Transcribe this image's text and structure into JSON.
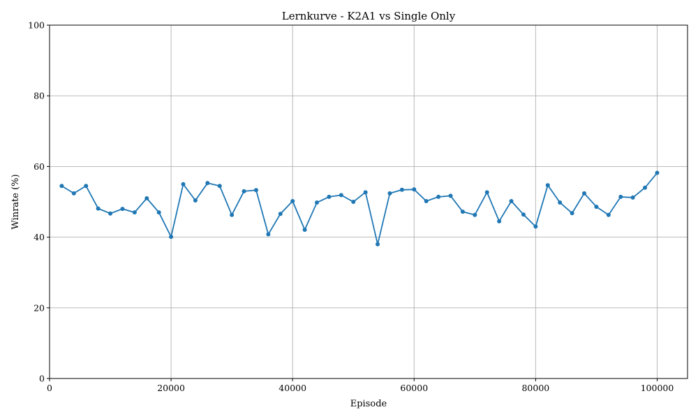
{
  "chart_data": {
    "type": "line",
    "title": "Lernkurve - K2A1 vs Single Only",
    "xlabel": "Episode",
    "ylabel": "Winrate (%)",
    "xlim": [
      0,
      105000
    ],
    "ylim": [
      0,
      100
    ],
    "xticks": [
      0,
      20000,
      40000,
      60000,
      80000,
      100000
    ],
    "yticks": [
      0,
      20,
      40,
      60,
      80,
      100
    ],
    "grid": true,
    "color": "#1f77b4",
    "series": [
      {
        "x": [
          2000,
          4000,
          6000,
          8000,
          10000,
          12000,
          14000,
          16000,
          18000,
          20000,
          22000,
          24000,
          26000,
          28000,
          30000,
          32000,
          34000,
          36000,
          38000,
          40000,
          42000,
          44000,
          46000,
          48000,
          50000,
          52000,
          54000,
          56000,
          58000,
          60000,
          62000,
          64000,
          66000,
          68000,
          70000,
          72000,
          74000,
          76000,
          78000,
          80000,
          82000,
          84000,
          86000,
          88000,
          90000,
          92000,
          94000,
          96000,
          98000,
          100000
        ],
        "y": [
          54.5,
          52.4,
          54.5,
          48.1,
          46.7,
          48.0,
          47.0,
          51.0,
          47.0,
          40.1,
          55.0,
          50.4,
          55.3,
          54.5,
          46.3,
          53.0,
          53.3,
          40.8,
          46.6,
          50.2,
          42.1,
          49.8,
          51.4,
          51.9,
          50.0,
          52.7,
          38.0,
          52.4,
          53.4,
          53.5,
          50.2,
          51.4,
          51.7,
          47.2,
          46.3,
          52.7,
          44.5,
          50.2,
          46.4,
          43.0,
          54.7,
          49.8,
          46.8,
          52.4,
          48.6,
          46.3,
          51.4,
          51.2,
          54.0,
          58.2
        ]
      }
    ]
  }
}
